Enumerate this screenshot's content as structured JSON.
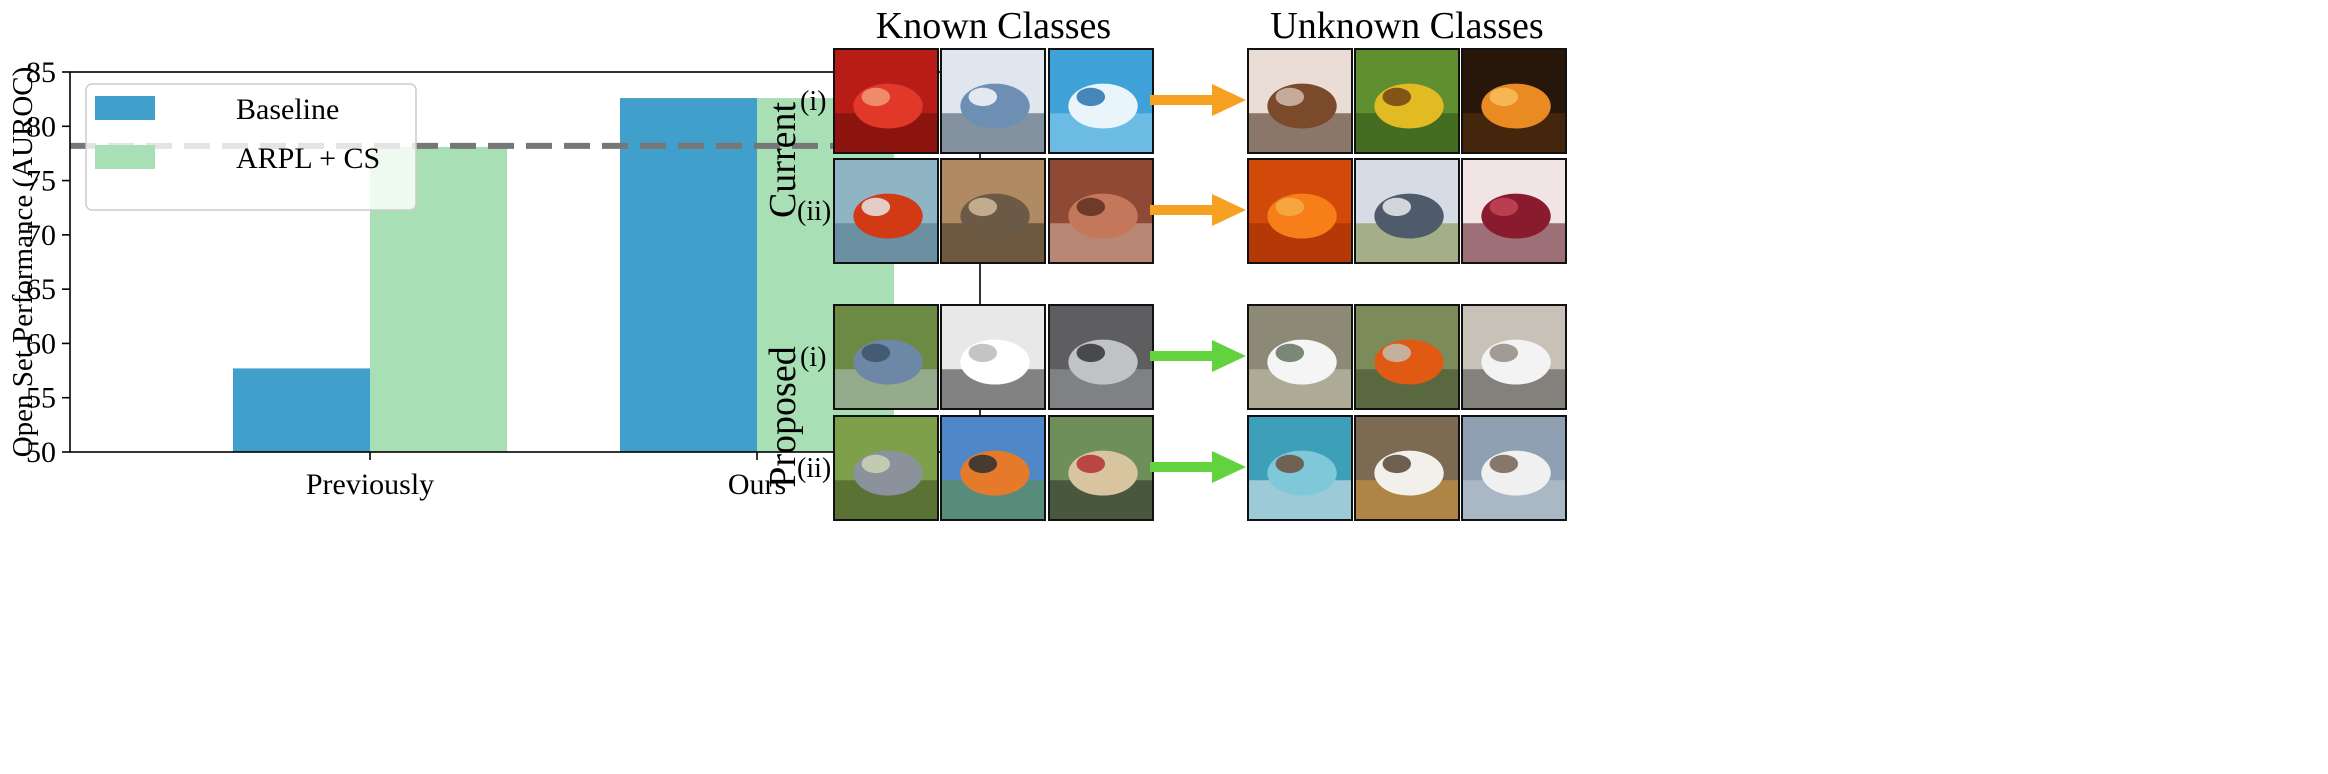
{
  "chart_data": {
    "type": "bar",
    "categories": [
      "Previously",
      "Ours"
    ],
    "series": [
      {
        "name": "Baseline",
        "values": [
          57.7,
          82.6
        ],
        "color": "#41a0cb"
      },
      {
        "name": "ARPL + CS",
        "values": [
          78.1,
          82.6
        ],
        "color": "#a9dfb5"
      }
    ],
    "ylabel": "Open Set Performance (AUROC)",
    "xlabel": "",
    "ylim": [
      50,
      85
    ],
    "yticks": [
      50,
      55,
      60,
      65,
      70,
      75,
      80,
      85
    ],
    "reference_line": {
      "value": 78.2,
      "style": "dashed",
      "color": "#777777"
    },
    "legend_position": "top-left",
    "grid": false
  },
  "figure": {
    "known_title": "Known Classes",
    "unknown_title": "Unknown Classes",
    "groups": [
      {
        "label": "Current",
        "arrow_color": "#f7a122",
        "rows": [
          {
            "label": "(i)",
            "known": [
              "red-car-image",
              "white-truck-image",
              "boat-image"
            ],
            "unknown": [
              "bottle-image",
              "sunflower-image",
              "orange-slice-image"
            ]
          },
          {
            "label": "(ii)",
            "known": [
              "goldfish-image",
              "cougar-image",
              "stone-arch-image"
            ],
            "unknown": [
              "orange-image",
              "house-image",
              "pomegranate-image"
            ]
          }
        ]
      },
      {
        "label": "Proposed",
        "arrow_color": "#62d23f",
        "rows": [
          {
            "label": "(i)",
            "known": [
              "blue-sedan-image",
              "white-sedan-image",
              "silver-pickup-image"
            ],
            "unknown": [
              "white-sports-car-image",
              "orange-sports-car-image",
              "white-suv-image"
            ]
          },
          {
            "label": "(ii)",
            "known": [
              "gray-bird-image",
              "orange-bird-image",
              "goldfinch-image"
            ],
            "unknown": [
              "duck-image",
              "pelican-image",
              "gull-image"
            ]
          }
        ]
      }
    ]
  }
}
